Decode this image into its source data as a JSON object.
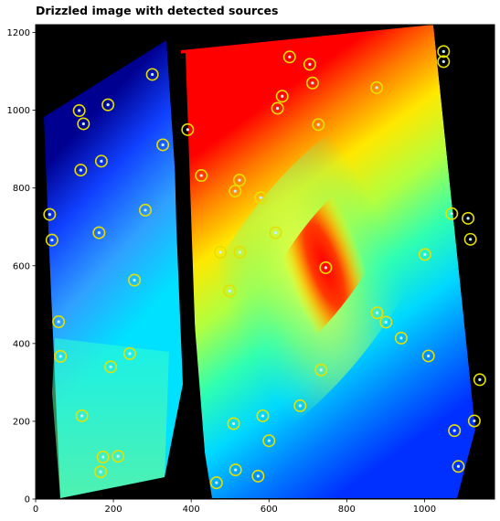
{
  "chart_data": {
    "type": "scatter",
    "title": "Drizzled image with detected sources",
    "xlabel": "",
    "ylabel": "",
    "xlim": [
      0,
      1180
    ],
    "ylim": [
      0,
      1220
    ],
    "xticks": [
      "0",
      "200",
      "400",
      "600",
      "800",
      "1000"
    ],
    "yticks": [
      "0",
      "200",
      "400",
      "600",
      "800",
      "1000",
      "1200"
    ],
    "grid": false,
    "background_image": "drizzled-image-jet-colormap",
    "marker_color": "#e5e000",
    "marker_style": "open-circle",
    "sources": [
      {
        "x": 300,
        "y": 1092
      },
      {
        "x": 653,
        "y": 1137
      },
      {
        "x": 705,
        "y": 1118
      },
      {
        "x": 1049,
        "y": 1151
      },
      {
        "x": 1049,
        "y": 1125
      },
      {
        "x": 112,
        "y": 999
      },
      {
        "x": 186,
        "y": 1014
      },
      {
        "x": 123,
        "y": 965
      },
      {
        "x": 712,
        "y": 1070
      },
      {
        "x": 877,
        "y": 1058
      },
      {
        "x": 634,
        "y": 1036
      },
      {
        "x": 622,
        "y": 1005
      },
      {
        "x": 727,
        "y": 963
      },
      {
        "x": 391,
        "y": 950
      },
      {
        "x": 327,
        "y": 911
      },
      {
        "x": 169,
        "y": 869
      },
      {
        "x": 116,
        "y": 846
      },
      {
        "x": 426,
        "y": 832
      },
      {
        "x": 524,
        "y": 820
      },
      {
        "x": 513,
        "y": 792
      },
      {
        "x": 579,
        "y": 775
      },
      {
        "x": 282,
        "y": 743
      },
      {
        "x": 36,
        "y": 732
      },
      {
        "x": 1070,
        "y": 734
      },
      {
        "x": 1112,
        "y": 722
      },
      {
        "x": 163,
        "y": 685
      },
      {
        "x": 617,
        "y": 685
      },
      {
        "x": 42,
        "y": 666
      },
      {
        "x": 1118,
        "y": 668
      },
      {
        "x": 475,
        "y": 635
      },
      {
        "x": 525,
        "y": 635
      },
      {
        "x": 1001,
        "y": 629
      },
      {
        "x": 746,
        "y": 595
      },
      {
        "x": 254,
        "y": 563
      },
      {
        "x": 499,
        "y": 535
      },
      {
        "x": 878,
        "y": 479
      },
      {
        "x": 901,
        "y": 455
      },
      {
        "x": 59,
        "y": 456
      },
      {
        "x": 940,
        "y": 414
      },
      {
        "x": 242,
        "y": 374
      },
      {
        "x": 64,
        "y": 367
      },
      {
        "x": 1010,
        "y": 368
      },
      {
        "x": 193,
        "y": 340
      },
      {
        "x": 734,
        "y": 332
      },
      {
        "x": 1142,
        "y": 307
      },
      {
        "x": 680,
        "y": 240
      },
      {
        "x": 119,
        "y": 214
      },
      {
        "x": 584,
        "y": 214
      },
      {
        "x": 1128,
        "y": 201
      },
      {
        "x": 509,
        "y": 194
      },
      {
        "x": 1077,
        "y": 176
      },
      {
        "x": 600,
        "y": 150
      },
      {
        "x": 173,
        "y": 108
      },
      {
        "x": 212,
        "y": 110
      },
      {
        "x": 1087,
        "y": 84
      },
      {
        "x": 514,
        "y": 75
      },
      {
        "x": 167,
        "y": 70
      },
      {
        "x": 572,
        "y": 59
      },
      {
        "x": 465,
        "y": 42
      }
    ]
  }
}
